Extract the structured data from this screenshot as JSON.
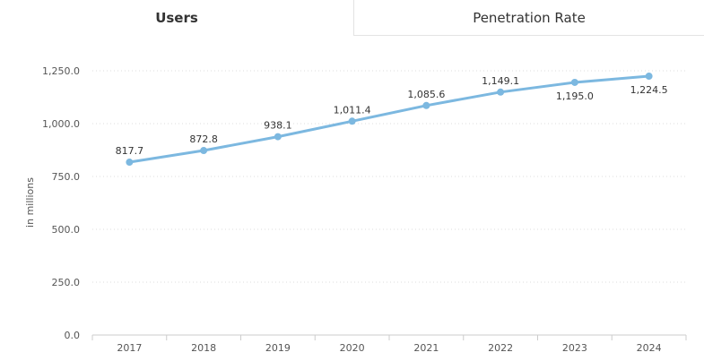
{
  "tabs": [
    {
      "label": "Users",
      "active": true
    },
    {
      "label": "Penetration Rate",
      "active": false
    }
  ],
  "chart_data": {
    "type": "line",
    "title": "",
    "xlabel": "",
    "ylabel": "in millions",
    "x": [
      "2017",
      "2018",
      "2019",
      "2020",
      "2021",
      "2022",
      "2023",
      "2024"
    ],
    "series": [
      {
        "values": [
          817.7,
          872.8,
          938.1,
          1011.4,
          1085.6,
          1149.1,
          1195.0,
          1224.5
        ],
        "labels": [
          "817.7",
          "872.8",
          "938.1",
          "1,011.4",
          "1,085.6",
          "1,149.1",
          "1,195.0",
          "1,224.5"
        ],
        "label_position": [
          "above",
          "above",
          "above",
          "above",
          "above",
          "above",
          "below",
          "below"
        ],
        "color": "#7cb8e0"
      }
    ],
    "yticks": [
      0,
      250,
      500,
      750,
      1000,
      1250
    ],
    "ytick_labels": [
      "0.0",
      "250.0",
      "500.0",
      "750.0",
      "1,000.0",
      "1,250.0"
    ],
    "ylim": [
      0,
      1250
    ],
    "grid": true,
    "colors": {
      "line": "#7cb8e0",
      "grid": "#dddddd",
      "axis": "#cccccc"
    }
  }
}
